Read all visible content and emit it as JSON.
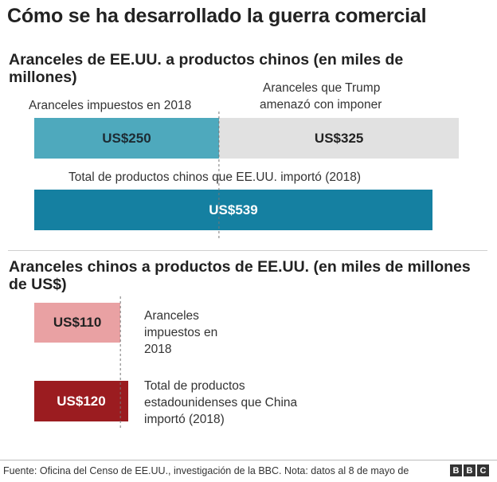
{
  "title": "Cómo se ha desarrollado la guerra comercial",
  "footer": "Fuente: Oficina del Censo de EE.UU., investigación de la BBC. Nota: datos al 8 de mayo de",
  "logo": [
    "B",
    "B",
    "C"
  ],
  "colors": {
    "us_imposed": "#4ea9bd",
    "us_threatened": "#e1e1e1",
    "us_total": "#1580a1",
    "cn_imposed": "#e9a1a3",
    "cn_total": "#9b1c20"
  },
  "chart_data": [
    {
      "type": "bar",
      "title": "Aranceles de EE.UU. a productos chinos (en miles de millones)",
      "unit": "miles de millones US$",
      "series": [
        {
          "name": "Aranceles impuestos en 2018",
          "value": 250,
          "label": "US$250"
        },
        {
          "name": "Aranceles que Trump amenazó con imponer",
          "value": 325,
          "label": "US$325"
        },
        {
          "name": "Total de productos chinos que EE.UU. importó (2018)",
          "value": 539,
          "label": "US$539"
        }
      ],
      "annotations": {
        "imposed": "Aranceles impuestos en 2018",
        "threatened_line1": "Aranceles que Trump",
        "threatened_line2": "amenazó con imponer",
        "total": "Total de productos chinos que EE.UU. importó (2018)"
      }
    },
    {
      "type": "bar",
      "title": "Aranceles chinos a productos de EE.UU. (en miles de millones de US$)",
      "unit": "miles de millones US$",
      "series": [
        {
          "name": "Aranceles impuestos en 2018",
          "value": 110,
          "label": "US$110"
        },
        {
          "name": "Total de productos estadounidenses que China importó (2018)",
          "value": 120,
          "label": "US$120"
        }
      ],
      "annotations": {
        "imposed_line1": "Aranceles",
        "imposed_line2": "impuestos en",
        "imposed_line3": "2018",
        "total_line1": "Total de productos",
        "total_line2": "estadounidenses que China",
        "total_line3": "importó (2018)"
      }
    }
  ]
}
